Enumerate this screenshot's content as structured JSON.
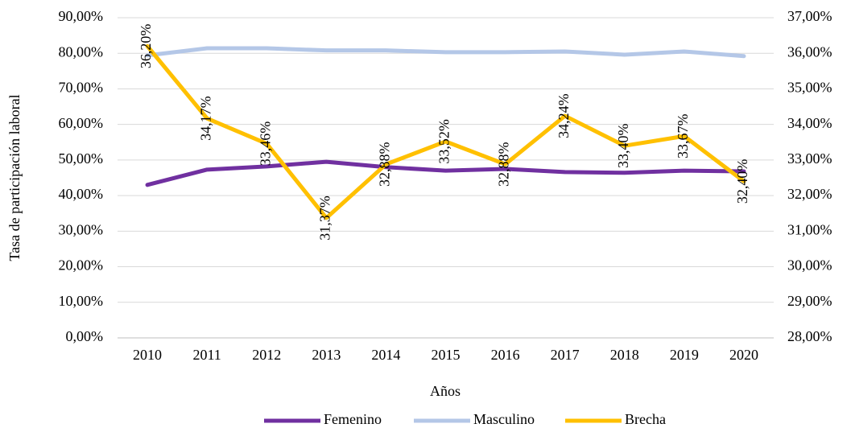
{
  "chart_data": {
    "type": "line",
    "x_label": "Años",
    "y_label": "Tasa de participación laboral",
    "categories": [
      "2010",
      "2011",
      "2012",
      "2013",
      "2014",
      "2015",
      "2016",
      "2017",
      "2018",
      "2019",
      "2020"
    ],
    "series": [
      {
        "name": "Femenino",
        "color": "#7030a0",
        "values": [
          43.0,
          47.3,
          48.2,
          49.5,
          48.0,
          47.0,
          47.5,
          46.6,
          46.4,
          47.0,
          46.8
        ]
      },
      {
        "name": "Masculino",
        "color": "#b4c7e7",
        "values": [
          79.4,
          81.4,
          81.4,
          80.8,
          80.8,
          80.3,
          80.3,
          80.5,
          79.6,
          80.5,
          79.2
        ]
      },
      {
        "name": "Brecha",
        "color": "#ffc000",
        "axis": "y2",
        "values": [
          36.2,
          34.17,
          33.46,
          31.37,
          32.88,
          33.52,
          32.88,
          34.24,
          33.4,
          33.67,
          32.4
        ],
        "value_labels": [
          "36,20%",
          "34,17%",
          "33,46%",
          "31,37%",
          "32,88%",
          "33,52%",
          "32,88%",
          "34,24%",
          "33,40%",
          "33,67%",
          "32,40%"
        ]
      }
    ],
    "ylim": [
      0,
      90
    ],
    "yticks": [
      {
        "value": 0,
        "label": "0,00%"
      },
      {
        "value": 10,
        "label": "10,00%"
      },
      {
        "value": 20,
        "label": "20,00%"
      },
      {
        "value": 30,
        "label": "30,00%"
      },
      {
        "value": 40,
        "label": "40,00%"
      },
      {
        "value": 50,
        "label": "50,00%"
      },
      {
        "value": 60,
        "label": "60,00%"
      },
      {
        "value": 70,
        "label": "70,00%"
      },
      {
        "value": 80,
        "label": "80,00%"
      },
      {
        "value": 90,
        "label": "90,00%"
      }
    ],
    "y2lim": [
      28,
      37
    ],
    "y2ticks": [
      {
        "value": 28,
        "label": "28,00%"
      },
      {
        "value": 29,
        "label": "29,00%"
      },
      {
        "value": 30,
        "label": "30,00%"
      },
      {
        "value": 31,
        "label": "31,00%"
      },
      {
        "value": 32,
        "label": "32,00%"
      },
      {
        "value": 33,
        "label": "33,00%"
      },
      {
        "value": 34,
        "label": "34,00%"
      },
      {
        "value": 35,
        "label": "35,00%"
      },
      {
        "value": 36,
        "label": "36,00%"
      },
      {
        "value": 37,
        "label": "37,00%"
      }
    ],
    "grid": true,
    "legend": "bottom"
  }
}
